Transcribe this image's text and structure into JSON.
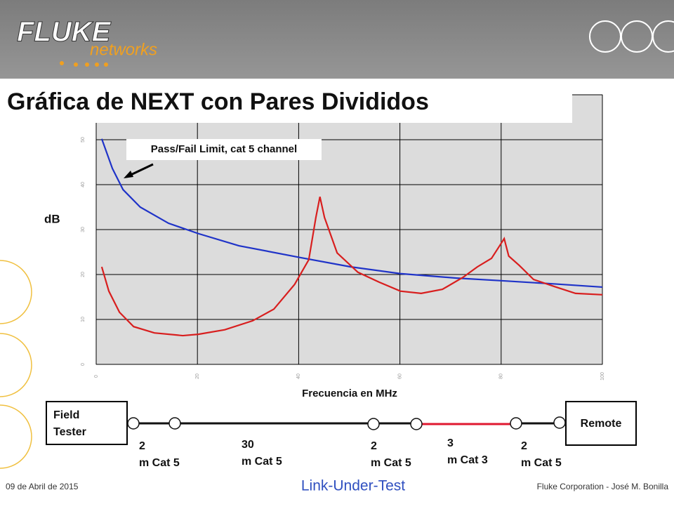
{
  "logo": {
    "brand": "FLUKE",
    "sub": "networks"
  },
  "chart_data": {
    "type": "line",
    "title": "Gráfica de NEXT con Pares Divididos",
    "annotation": "Pass/Fail Limit, cat 5 channel",
    "y_label": "dB",
    "x_label": "Frecuencia en MHz",
    "xlim": [
      0,
      100
    ],
    "xticks": [
      0,
      20,
      40,
      60,
      80,
      100
    ],
    "ylim": [
      0,
      60
    ],
    "yticks": [
      0,
      10,
      20,
      30,
      40,
      50,
      60
    ],
    "grid": true,
    "series": [
      {
        "color": "#1f33c8",
        "x": [
          1.1,
          3.2,
          5.3,
          8.7,
          14.3,
          20.2,
          28.2,
          40.2,
          50.3,
          60.1,
          71.2,
          80.3,
          90.6,
          100
        ],
        "values": [
          50.2,
          43.6,
          38.9,
          35.0,
          31.4,
          29.1,
          26.4,
          23.8,
          21.7,
          20.2,
          19.2,
          18.6,
          17.9,
          17.2
        ]
      },
      {
        "color": "#d81e1e",
        "x": [
          1.1,
          2.5,
          4.6,
          7.4,
          11.5,
          17.1,
          20.2,
          25.4,
          30.9,
          35.1,
          39.2,
          42.0,
          43.4,
          44.2,
          45.1,
          47.6,
          51.7,
          55.9,
          60.1,
          64.2,
          68.4,
          72.5,
          75.3,
          78.1,
          79.7,
          80.6,
          81.5,
          83.6,
          86.4,
          90.6,
          94.7,
          100
        ],
        "values": [
          21.7,
          16.3,
          11.6,
          8.4,
          7.0,
          6.4,
          6.7,
          7.7,
          9.7,
          12.3,
          17.8,
          23.3,
          32.7,
          37.3,
          32.7,
          24.8,
          20.5,
          18.3,
          16.3,
          15.8,
          16.7,
          19.4,
          21.7,
          23.6,
          26.4,
          28.0,
          24.1,
          22.0,
          18.9,
          17.3,
          15.8,
          15.5
        ]
      }
    ]
  },
  "diagram": {
    "field": "Field Tester",
    "remote": "Remote",
    "segments": [
      "2 m Cat 5",
      "30 m Cat 5",
      "2 m Cat 5",
      "3 m Cat 3",
      "2 m Cat 5"
    ],
    "caption": "Link-Under-Test"
  },
  "footer": {
    "date": "09 de Abril de 2015",
    "credit": "Fluke Corporation - José M. Bonilla"
  }
}
